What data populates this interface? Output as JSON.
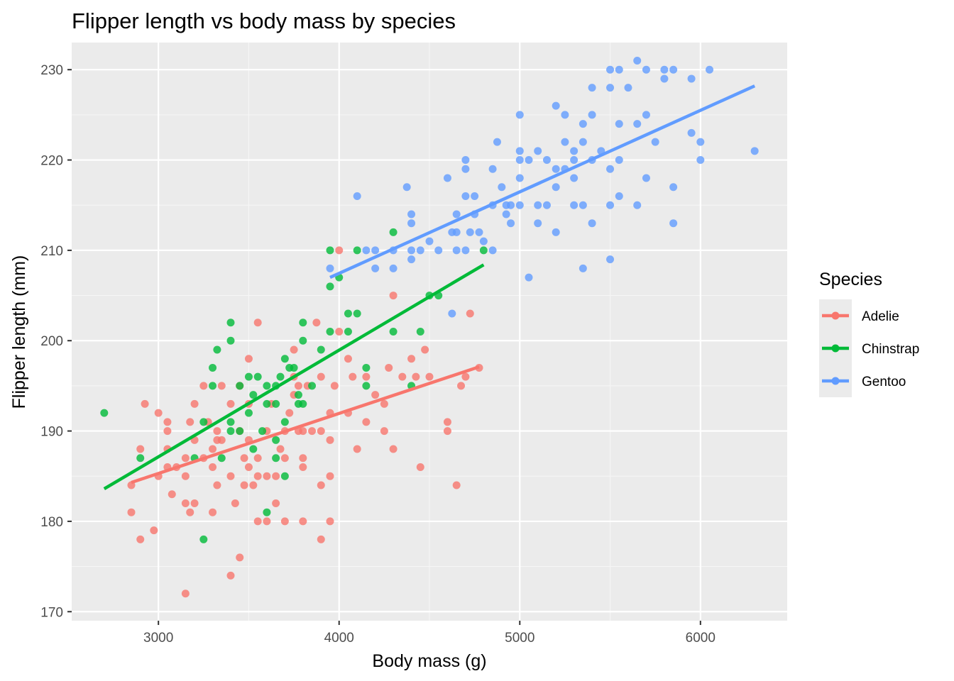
{
  "chart_data": {
    "type": "scatter",
    "title": "Flipper length vs body mass by species",
    "xlabel": "Body mass (g)",
    "ylabel": "Flipper length (mm)",
    "xlim": [
      2520,
      6480
    ],
    "ylim": [
      169.0,
      233.0
    ],
    "x_ticks": [
      3000,
      4000,
      5000,
      6000
    ],
    "y_ticks": [
      170,
      180,
      190,
      200,
      210,
      220,
      230
    ],
    "grid": true,
    "legend": {
      "title": "Species",
      "position": "right"
    },
    "series": [
      {
        "name": "Adelie",
        "color": "#F8766D",
        "trend": {
          "x": [
            2850,
            4775
          ],
          "y": [
            184.3,
            197.1
          ]
        },
        "points": [
          [
            2850,
            184
          ],
          [
            2850,
            181
          ],
          [
            2900,
            188
          ],
          [
            2900,
            178
          ],
          [
            2925,
            193
          ],
          [
            2975,
            179
          ],
          [
            3000,
            185
          ],
          [
            3000,
            192
          ],
          [
            3050,
            190
          ],
          [
            3050,
            188
          ],
          [
            3050,
            186
          ],
          [
            3050,
            191
          ],
          [
            3075,
            183
          ],
          [
            3100,
            186
          ],
          [
            3150,
            187
          ],
          [
            3150,
            185
          ],
          [
            3150,
            182
          ],
          [
            3150,
            172
          ],
          [
            3175,
            181
          ],
          [
            3175,
            191
          ],
          [
            3200,
            193
          ],
          [
            3200,
            189
          ],
          [
            3200,
            182
          ],
          [
            3250,
            195
          ],
          [
            3250,
            187
          ],
          [
            3275,
            191
          ],
          [
            3300,
            188
          ],
          [
            3300,
            186
          ],
          [
            3300,
            181
          ],
          [
            3325,
            190
          ],
          [
            3325,
            184
          ],
          [
            3325,
            189
          ],
          [
            3350,
            195
          ],
          [
            3350,
            189
          ],
          [
            3400,
            185
          ],
          [
            3400,
            174
          ],
          [
            3400,
            193
          ],
          [
            3425,
            182
          ],
          [
            3450,
            195
          ],
          [
            3450,
            190
          ],
          [
            3450,
            176
          ],
          [
            3475,
            187
          ],
          [
            3475,
            184
          ],
          [
            3500,
            198
          ],
          [
            3500,
            193
          ],
          [
            3500,
            189
          ],
          [
            3500,
            186
          ],
          [
            3525,
            184
          ],
          [
            3550,
            202
          ],
          [
            3550,
            187
          ],
          [
            3550,
            185
          ],
          [
            3550,
            180
          ],
          [
            3600,
            190
          ],
          [
            3600,
            185
          ],
          [
            3600,
            180
          ],
          [
            3625,
            193
          ],
          [
            3650,
            185
          ],
          [
            3650,
            182
          ],
          [
            3675,
            188
          ],
          [
            3700,
            187
          ],
          [
            3700,
            190
          ],
          [
            3700,
            180
          ],
          [
            3725,
            192
          ],
          [
            3750,
            196
          ],
          [
            3750,
            199
          ],
          [
            3750,
            194
          ],
          [
            3775,
            195
          ],
          [
            3775,
            190
          ],
          [
            3800,
            190
          ],
          [
            3800,
            187
          ],
          [
            3800,
            186
          ],
          [
            3800,
            180
          ],
          [
            3825,
            195
          ],
          [
            3850,
            190
          ],
          [
            3875,
            202
          ],
          [
            3900,
            196
          ],
          [
            3900,
            190
          ],
          [
            3900,
            184
          ],
          [
            3900,
            178
          ],
          [
            3950,
            192
          ],
          [
            3950,
            185
          ],
          [
            3950,
            189
          ],
          [
            3950,
            180
          ],
          [
            3975,
            195
          ],
          [
            4000,
            201
          ],
          [
            4000,
            210
          ],
          [
            4050,
            198
          ],
          [
            4050,
            192
          ],
          [
            4075,
            196
          ],
          [
            4100,
            188
          ],
          [
            4150,
            196
          ],
          [
            4150,
            191
          ],
          [
            4200,
            194
          ],
          [
            4250,
            193
          ],
          [
            4250,
            190
          ],
          [
            4275,
            197
          ],
          [
            4300,
            205
          ],
          [
            4300,
            188
          ],
          [
            4350,
            196
          ],
          [
            4400,
            198
          ],
          [
            4425,
            196
          ],
          [
            4450,
            186
          ],
          [
            4475,
            199
          ],
          [
            4500,
            196
          ],
          [
            4600,
            191
          ],
          [
            4600,
            190
          ],
          [
            4650,
            184
          ],
          [
            4675,
            195
          ],
          [
            4700,
            196
          ],
          [
            4725,
            203
          ],
          [
            4775,
            197
          ]
        ]
      },
      {
        "name": "Chinstrap",
        "color": "#00BA38",
        "trend": {
          "x": [
            2700,
            4800
          ],
          "y": [
            183.6,
            208.4
          ]
        },
        "points": [
          [
            2700,
            192
          ],
          [
            2900,
            187
          ],
          [
            3200,
            187
          ],
          [
            3250,
            178
          ],
          [
            3250,
            191
          ],
          [
            3300,
            197
          ],
          [
            3300,
            195
          ],
          [
            3325,
            199
          ],
          [
            3350,
            187
          ],
          [
            3400,
            202
          ],
          [
            3400,
            200
          ],
          [
            3400,
            191
          ],
          [
            3400,
            190
          ],
          [
            3450,
            190
          ],
          [
            3450,
            195
          ],
          [
            3500,
            196
          ],
          [
            3500,
            192
          ],
          [
            3525,
            188
          ],
          [
            3525,
            194
          ],
          [
            3550,
            196
          ],
          [
            3575,
            190
          ],
          [
            3600,
            195
          ],
          [
            3600,
            193
          ],
          [
            3600,
            181
          ],
          [
            3650,
            195
          ],
          [
            3650,
            193
          ],
          [
            3650,
            189
          ],
          [
            3650,
            187
          ],
          [
            3675,
            196
          ],
          [
            3700,
            191
          ],
          [
            3700,
            185
          ],
          [
            3700,
            198
          ],
          [
            3725,
            197
          ],
          [
            3750,
            197
          ],
          [
            3775,
            194
          ],
          [
            3775,
            193
          ],
          [
            3800,
            202
          ],
          [
            3800,
            200
          ],
          [
            3800,
            193
          ],
          [
            3850,
            195
          ],
          [
            3900,
            199
          ],
          [
            3950,
            210
          ],
          [
            3950,
            206
          ],
          [
            3950,
            201
          ],
          [
            4000,
            207
          ],
          [
            4050,
            203
          ],
          [
            4050,
            201
          ],
          [
            4100,
            203
          ],
          [
            4100,
            210
          ],
          [
            4150,
            197
          ],
          [
            4150,
            195
          ],
          [
            4300,
            212
          ],
          [
            4300,
            201
          ],
          [
            4400,
            195
          ],
          [
            4450,
            201
          ],
          [
            4500,
            205
          ],
          [
            4550,
            205
          ],
          [
            4800,
            210
          ]
        ]
      },
      {
        "name": "Gentoo",
        "color": "#619CFF",
        "trend": {
          "x": [
            3950,
            6300
          ],
          "y": [
            207.0,
            228.2
          ]
        },
        "points": [
          [
            3950,
            208
          ],
          [
            4100,
            216
          ],
          [
            4150,
            210
          ],
          [
            4200,
            210
          ],
          [
            4200,
            208
          ],
          [
            4300,
            210
          ],
          [
            4300,
            208
          ],
          [
            4375,
            217
          ],
          [
            4400,
            214
          ],
          [
            4400,
            213
          ],
          [
            4400,
            210
          ],
          [
            4400,
            209
          ],
          [
            4450,
            210
          ],
          [
            4500,
            211
          ],
          [
            4550,
            210
          ],
          [
            4600,
            218
          ],
          [
            4625,
            212
          ],
          [
            4625,
            203
          ],
          [
            4650,
            214
          ],
          [
            4650,
            212
          ],
          [
            4650,
            210
          ],
          [
            4700,
            220
          ],
          [
            4700,
            219
          ],
          [
            4700,
            216
          ],
          [
            4700,
            210
          ],
          [
            4725,
            212
          ],
          [
            4750,
            216
          ],
          [
            4750,
            214
          ],
          [
            4775,
            212
          ],
          [
            4800,
            211
          ],
          [
            4850,
            219
          ],
          [
            4850,
            215
          ],
          [
            4850,
            210
          ],
          [
            4875,
            222
          ],
          [
            4900,
            217
          ],
          [
            4925,
            215
          ],
          [
            4925,
            214
          ],
          [
            4950,
            215
          ],
          [
            4950,
            213
          ],
          [
            5000,
            225
          ],
          [
            5000,
            221
          ],
          [
            5000,
            220
          ],
          [
            5000,
            218
          ],
          [
            5000,
            215
          ],
          [
            5050,
            220
          ],
          [
            5050,
            207
          ],
          [
            5100,
            221
          ],
          [
            5100,
            215
          ],
          [
            5100,
            213
          ],
          [
            5150,
            220
          ],
          [
            5150,
            215
          ],
          [
            5200,
            226
          ],
          [
            5200,
            219
          ],
          [
            5200,
            217
          ],
          [
            5200,
            212
          ],
          [
            5250,
            225
          ],
          [
            5250,
            222
          ],
          [
            5250,
            219
          ],
          [
            5300,
            221
          ],
          [
            5300,
            220
          ],
          [
            5300,
            218
          ],
          [
            5300,
            215
          ],
          [
            5350,
            224
          ],
          [
            5350,
            222
          ],
          [
            5350,
            215
          ],
          [
            5350,
            208
          ],
          [
            5400,
            228
          ],
          [
            5400,
            225
          ],
          [
            5400,
            220
          ],
          [
            5400,
            213
          ],
          [
            5450,
            221
          ],
          [
            5500,
            230
          ],
          [
            5500,
            228
          ],
          [
            5500,
            219
          ],
          [
            5500,
            215
          ],
          [
            5500,
            209
          ],
          [
            5550,
            230
          ],
          [
            5550,
            224
          ],
          [
            5550,
            220
          ],
          [
            5550,
            216
          ],
          [
            5600,
            228
          ],
          [
            5650,
            231
          ],
          [
            5650,
            224
          ],
          [
            5650,
            215
          ],
          [
            5700,
            230
          ],
          [
            5700,
            225
          ],
          [
            5700,
            218
          ],
          [
            5750,
            222
          ],
          [
            5800,
            230
          ],
          [
            5800,
            229
          ],
          [
            5850,
            230
          ],
          [
            5850,
            217
          ],
          [
            5850,
            213
          ],
          [
            5950,
            229
          ],
          [
            5950,
            223
          ],
          [
            6000,
            222
          ],
          [
            6000,
            220
          ],
          [
            6050,
            230
          ],
          [
            6300,
            221
          ]
        ]
      }
    ]
  }
}
